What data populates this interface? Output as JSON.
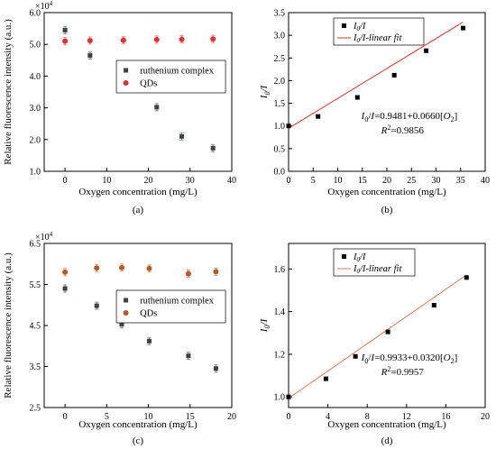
{
  "chart_data": [
    {
      "id": "a",
      "type": "scatter",
      "panel_label": "(a)",
      "xlabel": "Oxygen concentration (mg/L)",
      "ylabel": "Relative fluorescence intensity (a.u.)",
      "y_exponent": "×10",
      "y_exponent_power": "4",
      "xlim": [
        -5,
        40
      ],
      "ylim": [
        1.0,
        6.0
      ],
      "xticks": [
        0,
        10,
        20,
        30,
        40
      ],
      "yticks": [
        1.0,
        2.0,
        3.0,
        4.0,
        5.0,
        6.0
      ],
      "ytick_labels": [
        "1.0",
        "2.0",
        "3.0",
        "4.0",
        "5.0",
        "6.0"
      ],
      "legend_position": "center-right",
      "series": [
        {
          "name": "ruthenium complex",
          "marker": "square",
          "color": "#404040",
          "errcolor": "#7a8fa8",
          "x": [
            0,
            6,
            14,
            22,
            28,
            35.5
          ],
          "y": [
            5.45,
            4.65,
            3.82,
            3.02,
            2.1,
            1.73
          ]
        },
        {
          "name": "QDs",
          "marker": "circle",
          "color": "#e03030",
          "errcolor": "#f08080",
          "x": [
            0,
            6,
            14,
            22,
            28,
            35.5
          ],
          "y": [
            5.1,
            5.12,
            5.13,
            5.15,
            5.16,
            5.17
          ]
        }
      ]
    },
    {
      "id": "b",
      "type": "scatter",
      "panel_label": "(b)",
      "xlabel": "Oxygen concentration (mg/L)",
      "ylabel_main": "I",
      "ylabel_sub": "0",
      "ylabel_tail": "/I",
      "xlim": [
        0,
        40
      ],
      "ylim": [
        0.0,
        3.5
      ],
      "xticks": [
        0,
        5,
        10,
        15,
        20,
        25,
        30,
        35,
        40
      ],
      "yticks": [
        0.0,
        0.5,
        1.0,
        1.5,
        2.0,
        2.5,
        3.0,
        3.5
      ],
      "ytick_labels": [
        "0.0",
        "0.5",
        "1.0",
        "1.5",
        "2.0",
        "2.5",
        "3.0",
        "3.5"
      ],
      "legend_position": "top-left",
      "legend_points": "I0/I",
      "legend_fit": "I0/I-linear fit",
      "equation_lhs": "I0/I",
      "equation_rhs": "=0.9481+0.0660[O2]",
      "r2": "R2=0.9856",
      "fit": {
        "intercept": 0.9481,
        "slope": 0.066,
        "x_range": [
          0,
          35.5
        ],
        "color": "#e03030"
      },
      "series": [
        {
          "name": "I0/I",
          "marker": "square",
          "color": "#000000",
          "x": [
            0,
            6,
            14,
            21.5,
            28,
            35.5
          ],
          "y": [
            1.0,
            1.21,
            1.63,
            2.12,
            2.66,
            3.16
          ]
        }
      ]
    },
    {
      "id": "c",
      "type": "scatter",
      "panel_label": "(c)",
      "xlabel": "Oxygen concentration (mg/L)",
      "ylabel": "Relative fluorescence intensity (a.u.)",
      "y_exponent": "×10",
      "y_exponent_power": "4",
      "xlim": [
        -2.5,
        20
      ],
      "ylim": [
        2.5,
        6.5
      ],
      "xticks": [
        0,
        5,
        10,
        15,
        20
      ],
      "yticks": [
        2.5,
        3.5,
        4.5,
        5.5,
        6.5
      ],
      "ytick_labels": [
        "2.5",
        "3.5",
        "4.5",
        "5.5",
        "6.5"
      ],
      "legend_position": "center-right",
      "series": [
        {
          "name": "ruthenium complex",
          "marker": "square",
          "color": "#404040",
          "errcolor": "#7a8fa8",
          "x": [
            0,
            3.8,
            6.8,
            10.1,
            14.8,
            18.1
          ],
          "y": [
            5.4,
            4.98,
            4.53,
            4.12,
            3.76,
            3.45
          ]
        },
        {
          "name": "QDs",
          "marker": "circle",
          "color": "#b8582a",
          "errcolor": "#e0a060",
          "x": [
            0,
            3.8,
            6.8,
            10.1,
            14.8,
            18.1
          ],
          "y": [
            5.8,
            5.9,
            5.91,
            5.89,
            5.76,
            5.81
          ]
        }
      ]
    },
    {
      "id": "d",
      "type": "scatter",
      "panel_label": "(d)",
      "xlabel": "Oxygen concentration (mg/L)",
      "ylabel_main": "I",
      "ylabel_sub": "0",
      "ylabel_tail": "/I",
      "xlim": [
        0,
        20
      ],
      "ylim": [
        0.95,
        1.72
      ],
      "xticks": [
        0,
        4,
        8,
        12,
        16,
        20
      ],
      "yticks": [
        1.0,
        1.2,
        1.4,
        1.6
      ],
      "ytick_labels": [
        "1.0",
        "1.2",
        "1.4",
        "1.6"
      ],
      "legend_position": "top-left",
      "legend_points": "I0/I",
      "legend_fit": "I0/I-linear fit",
      "equation_lhs": "I0/I",
      "equation_rhs": "=0.9933+0.0320[O2]",
      "r2": "R2=0.9957",
      "fit": {
        "intercept": 0.9933,
        "slope": 0.032,
        "x_range": [
          0,
          18.1
        ],
        "color": "#e07a5a"
      },
      "series": [
        {
          "name": "I0/I",
          "marker": "square",
          "color": "#000000",
          "x": [
            0,
            3.8,
            6.8,
            10.1,
            14.8,
            18.1
          ],
          "y": [
            1.0,
            1.085,
            1.19,
            1.305,
            1.43,
            1.56
          ]
        }
      ]
    }
  ]
}
